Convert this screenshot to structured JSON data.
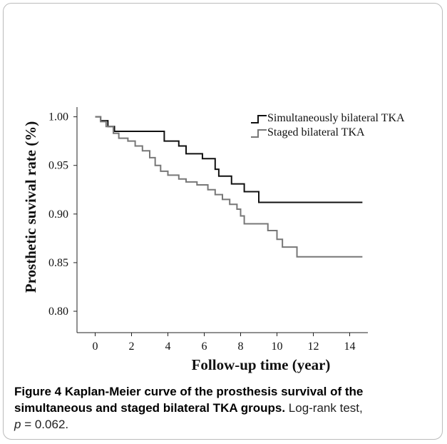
{
  "chart_data": {
    "type": "step",
    "x_label": "Follow-up time (year)",
    "y_label": "Prosthetic suvival rate (%)",
    "xlim": [
      -1,
      15
    ],
    "xticks": [
      0,
      2,
      4,
      6,
      8,
      10,
      12,
      14
    ],
    "ylim": [
      0.778,
      1.01
    ],
    "yticks": [
      {
        "value": 1,
        "label": "1.00"
      },
      0.95,
      {
        "value": 0.9,
        "label": "0.90"
      },
      0.85,
      {
        "value": 0.8,
        "label": "0.80"
      }
    ],
    "legend": "upper right",
    "series": [
      {
        "name": "Simultaneously bilateral TKA",
        "color": "#111111",
        "x": [
          0,
          0.3,
          0.7,
          1.06,
          3.8,
          4.6,
          5.0,
          5.9,
          6.6,
          6.8,
          7.5,
          8.2,
          9.0,
          14.7
        ],
        "values": [
          1.0,
          0.996,
          0.99,
          0.985,
          0.975,
          0.97,
          0.962,
          0.957,
          0.946,
          0.939,
          0.931,
          0.923,
          0.912,
          0.912
        ]
      },
      {
        "name": "Staged bilateral TKA",
        "color": "#777777",
        "x": [
          0,
          0.3,
          0.6,
          1.0,
          1.3,
          1.8,
          2.2,
          2.6,
          3.0,
          3.3,
          3.6,
          4.0,
          4.6,
          5.0,
          5.6,
          6.2,
          6.6,
          7.0,
          7.4,
          7.8,
          8.0,
          8.2,
          9.5,
          10.0,
          10.3,
          11.1,
          14.7
        ],
        "values": [
          1.0,
          0.995,
          0.99,
          0.983,
          0.978,
          0.975,
          0.97,
          0.965,
          0.958,
          0.95,
          0.944,
          0.94,
          0.936,
          0.933,
          0.93,
          0.925,
          0.92,
          0.915,
          0.91,
          0.905,
          0.898,
          0.89,
          0.883,
          0.874,
          0.866,
          0.856,
          0.856
        ]
      }
    ]
  },
  "caption": {
    "label": "Figure 4",
    "title": "Kaplan-Meier curve of the prosthesis survival of the simultaneous and staged bilateral TKA groups.",
    "text": "Log-rank test,",
    "p_symbol": "p",
    "p_value": "= 0.062."
  }
}
